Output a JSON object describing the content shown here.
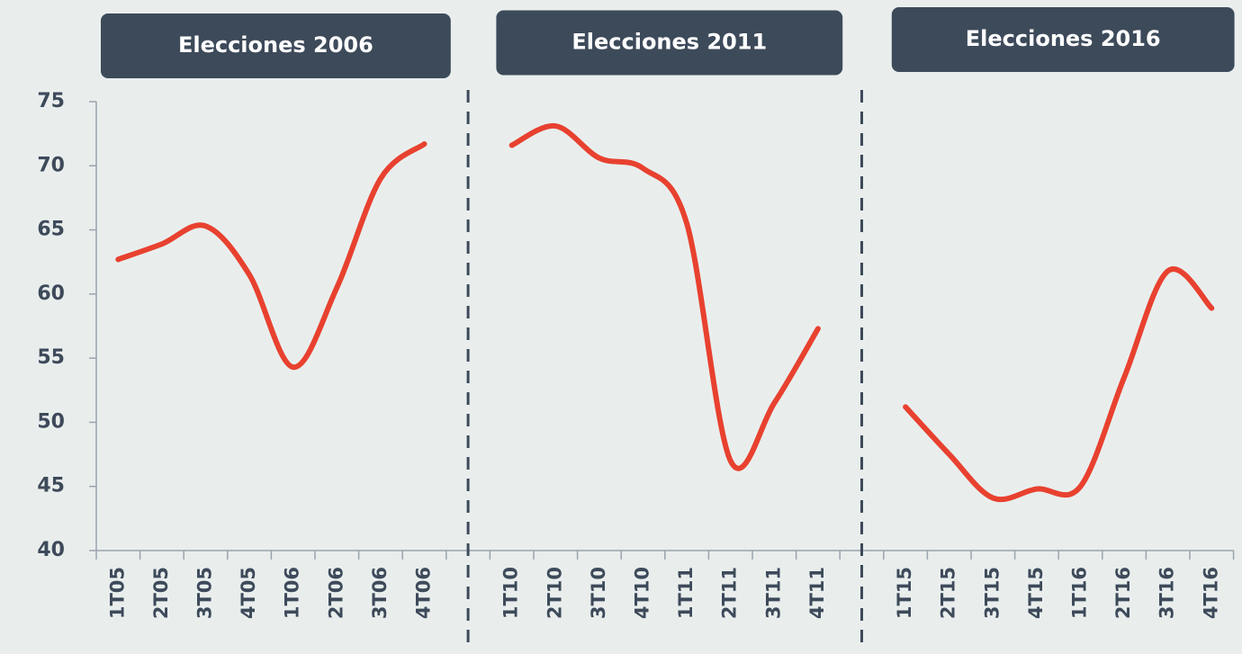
{
  "chart_data": {
    "type": "line",
    "annotations": [
      "Elecciones 2006",
      "Elecciones 2011",
      "Elecciones 2016"
    ],
    "categories": [
      "1T05",
      "2T05",
      "3T05",
      "4T05",
      "1T06",
      "2T06",
      "3T06",
      "4T06",
      null,
      "1T10",
      "2T10",
      "3T10",
      "4T10",
      "1T11",
      "2T11",
      "3T11",
      "4T11",
      null,
      "1T15",
      "2T15",
      "3T15",
      "4T15",
      "1T16",
      "2T16",
      "3T16",
      "4T16"
    ],
    "series": [
      {
        "color": "#e8412f",
        "values": [
          62.7,
          63.9,
          65.3,
          61.5,
          54.3,
          60.5,
          69.0,
          71.7,
          null,
          71.6,
          73.1,
          70.6,
          69.8,
          65.5,
          47.0,
          51.5,
          57.3,
          null,
          51.2,
          47.5,
          44.1,
          44.8,
          45.0,
          53.5,
          61.8,
          58.9
        ]
      }
    ],
    "ylim": [
      40,
      75
    ],
    "yticks": [
      40,
      45,
      50,
      55,
      60,
      65,
      70,
      75
    ]
  }
}
